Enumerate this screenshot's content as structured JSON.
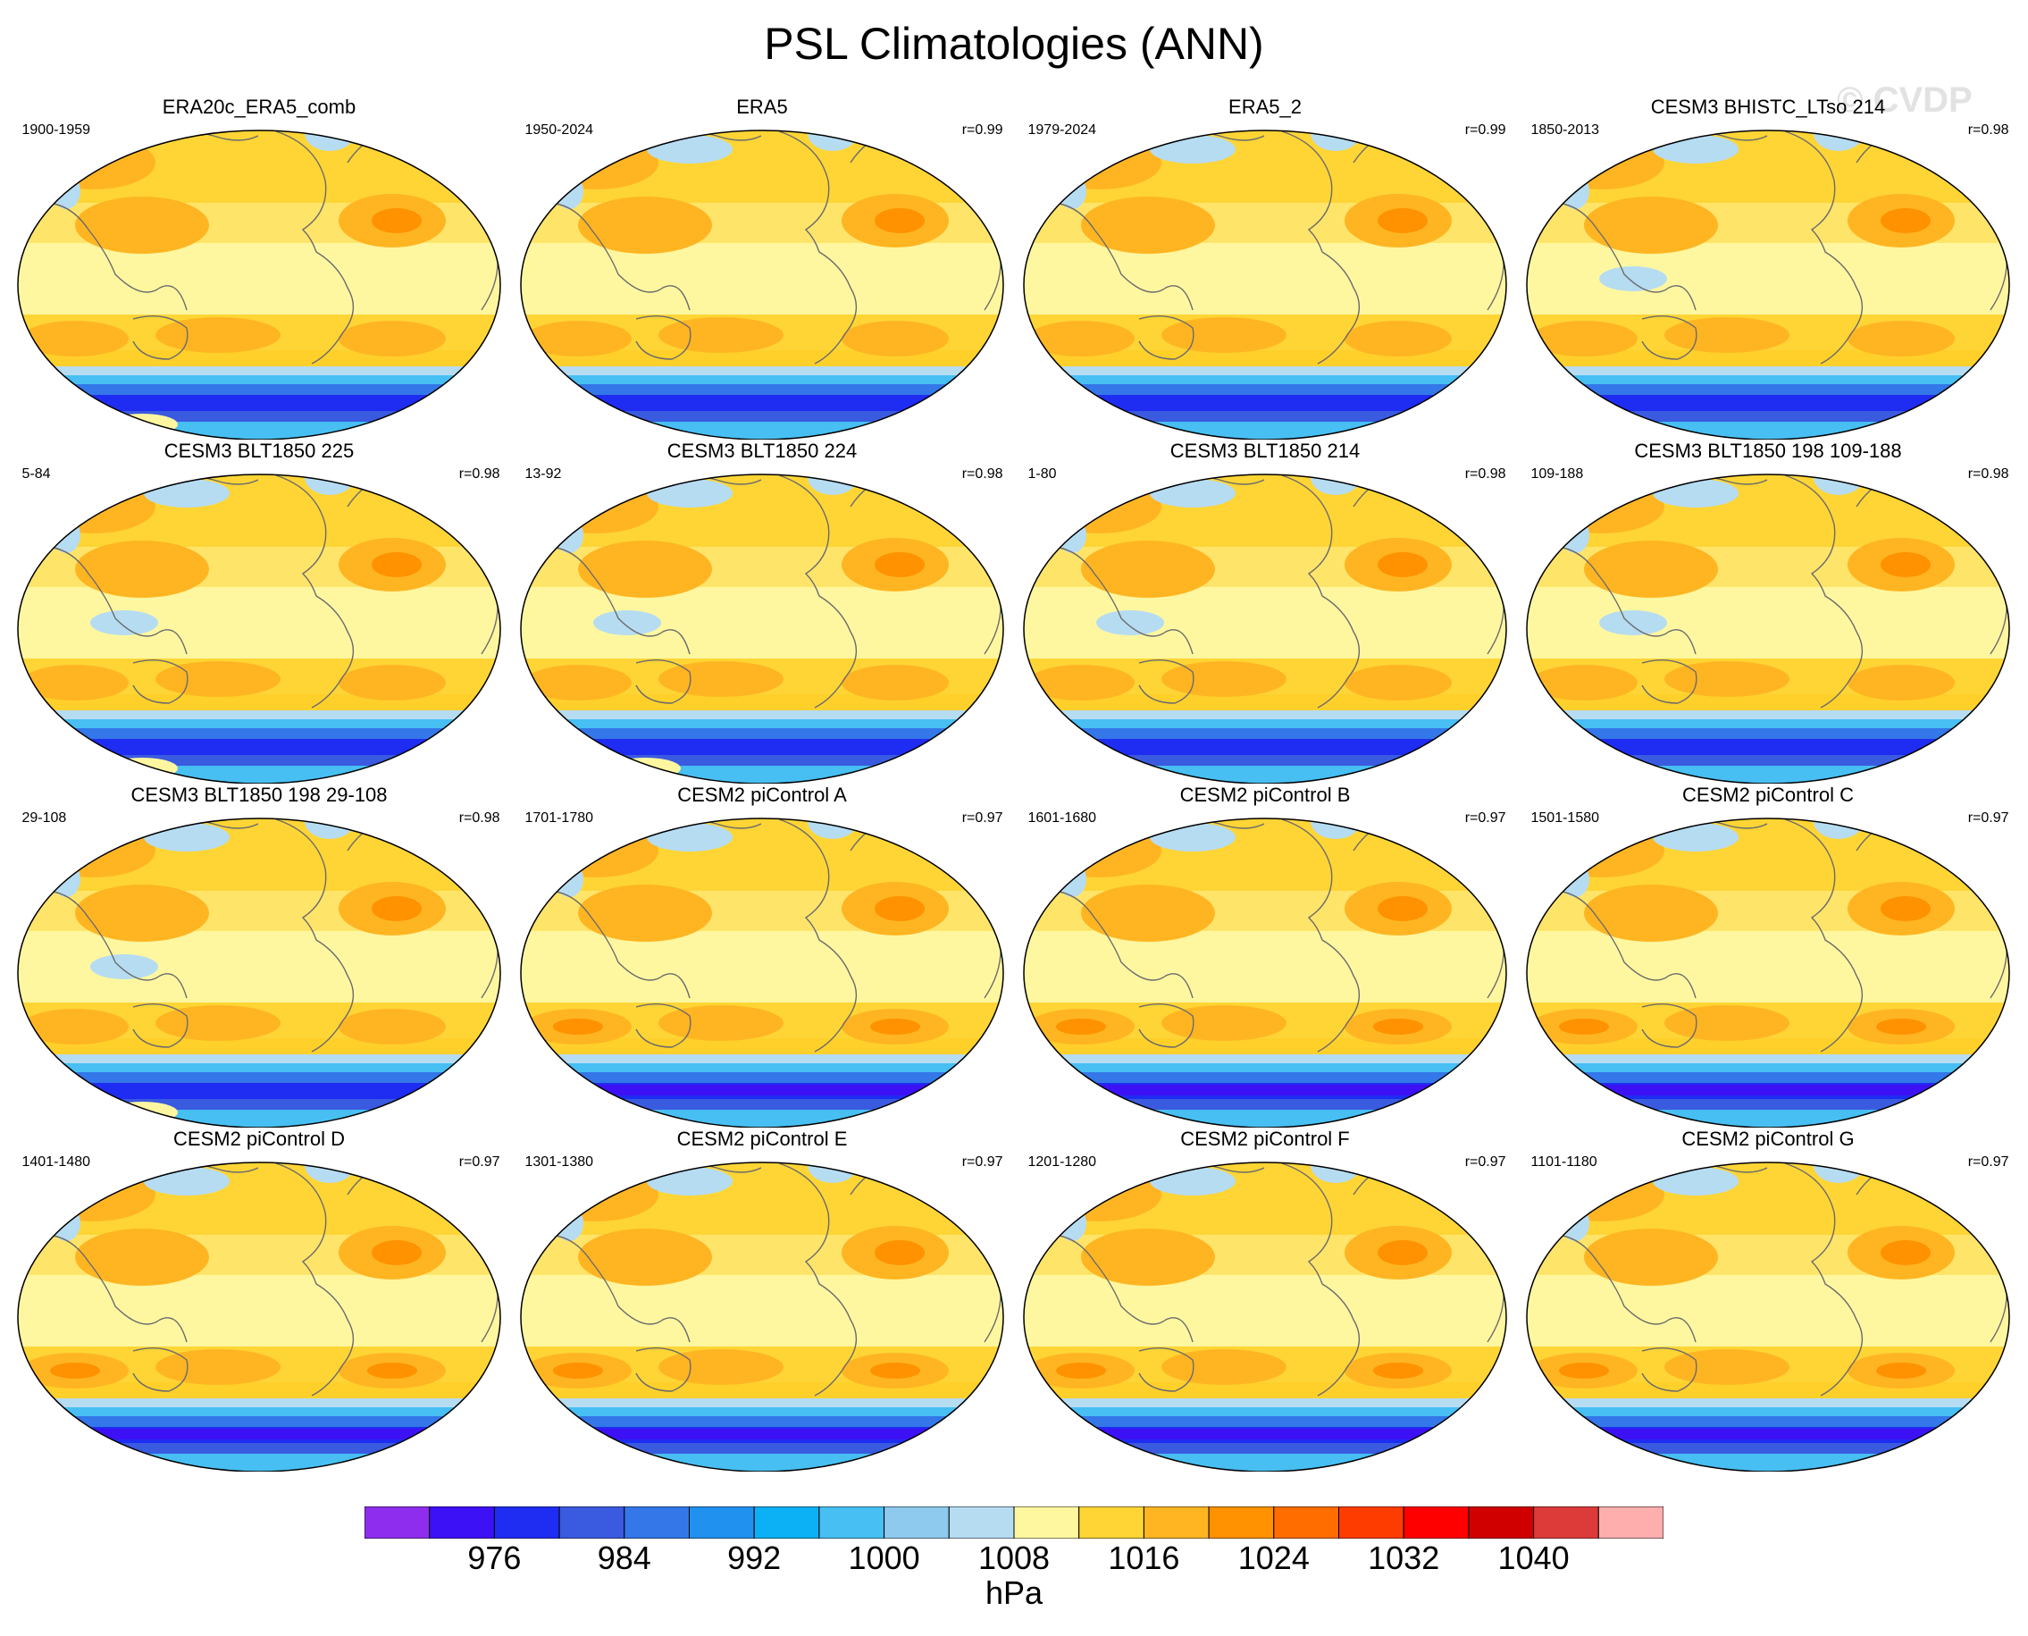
{
  "title": "PSL Climatologies (ANN)",
  "watermark": "© CVDP",
  "panels": [
    {
      "title": "ERA20c_ERA5_comb",
      "period": "1900-1959",
      "r": ""
    },
    {
      "title": "ERA5",
      "period": "1950-2024",
      "r": "r=0.99"
    },
    {
      "title": "ERA5_2",
      "period": "1979-2024",
      "r": "r=0.99"
    },
    {
      "title": "CESM3 BHISTC_LTso 214",
      "period": "1850-2013",
      "r": "r=0.98"
    },
    {
      "title": "CESM3 BLT1850 225",
      "period": "5-84",
      "r": "r=0.98"
    },
    {
      "title": "CESM3 BLT1850 224",
      "period": "13-92",
      "r": "r=0.98"
    },
    {
      "title": "CESM3 BLT1850 214",
      "period": "1-80",
      "r": "r=0.98"
    },
    {
      "title": "CESM3 BLT1850 198 109-188",
      "period": "109-188",
      "r": "r=0.98"
    },
    {
      "title": "CESM3 BLT1850 198 29-108",
      "period": "29-108",
      "r": "r=0.98"
    },
    {
      "title": "CESM2 piControl A",
      "period": "1701-1780",
      "r": "r=0.97"
    },
    {
      "title": "CESM2 piControl B",
      "period": "1601-1680",
      "r": "r=0.97"
    },
    {
      "title": "CESM2 piControl C",
      "period": "1501-1580",
      "r": "r=0.97"
    },
    {
      "title": "CESM2 piControl D",
      "period": "1401-1480",
      "r": "r=0.97"
    },
    {
      "title": "CESM2 piControl E",
      "period": "1301-1380",
      "r": "r=0.97"
    },
    {
      "title": "CESM2 piControl F",
      "period": "1201-1280",
      "r": "r=0.97"
    },
    {
      "title": "CESM2 piControl G",
      "period": "1101-1180",
      "r": "r=0.97"
    }
  ],
  "colorbar": {
    "units": "hPa",
    "labels": [
      "976",
      "984",
      "992",
      "1000",
      "1008",
      "1016",
      "1024",
      "1032",
      "1040"
    ],
    "colors": [
      "#8e2ded",
      "#3d11f5",
      "#1f2cf2",
      "#3a5ae0",
      "#3377e8",
      "#2191ef",
      "#0bb0f5",
      "#47bff2",
      "#8ec9ee",
      "#b6dcf2",
      "#fff7a0",
      "#fed535",
      "#ffb522",
      "#ff9200",
      "#ff6c00",
      "#ff3c00",
      "#ff0000",
      "#d00000",
      "#dd3a3a",
      "#ffaeae"
    ]
  }
}
